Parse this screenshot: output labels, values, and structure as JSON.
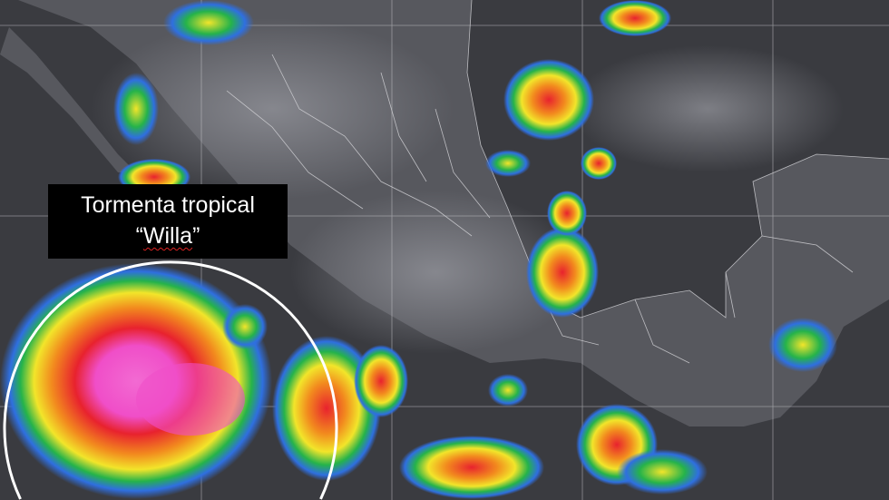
{
  "label": {
    "line1": "Tormenta tropical",
    "line2_open": "“",
    "line2_name": "Willa",
    "line2_close": "”"
  },
  "colors": {
    "background": "#3a3b40",
    "land": "#55565c",
    "borders": "#d8d8dc",
    "cloud_cold": [
      "#2f6fe0",
      "#25b34a",
      "#f2e52a",
      "#f28a1e",
      "#e8222e",
      "#f04ec8"
    ],
    "circle": "#ffffff"
  }
}
